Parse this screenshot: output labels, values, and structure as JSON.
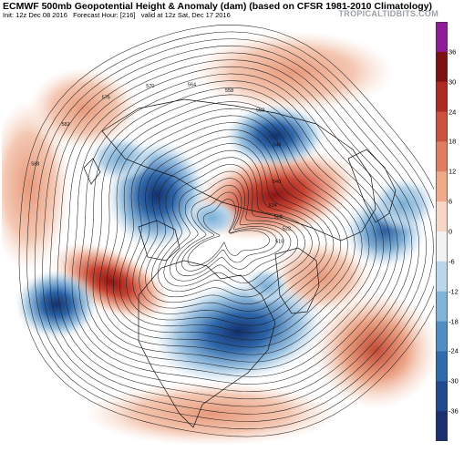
{
  "header": {
    "title": "ECMWF 500mb Geopotential Height & Anomaly (dam) (based on CFSR 1981-2010 Climatology)",
    "init": "Init: 12z Dec 08 2016",
    "forecast_hour": "Forecast Hour: [216]",
    "valid": "valid at 12z Sat, Dec 17 2016",
    "watermark": "TROPICALTIDBITS.COM"
  },
  "colorbar": {
    "ticks": [
      "36",
      "30",
      "24",
      "18",
      "12",
      "6",
      "0",
      "-6",
      "-12",
      "-18",
      "-24",
      "-30",
      "-36"
    ],
    "colors": [
      "#1c2f6f",
      "#204b8f",
      "#2f6cad",
      "#4f8fc4",
      "#82b3d9",
      "#b9d6ea",
      "#f2f2f2",
      "#f7d6c6",
      "#efaa8a",
      "#e07e60",
      "#cc523e",
      "#ad2b23",
      "#7e1212",
      "#8f1d9a"
    ]
  },
  "map": {
    "contour_labels": [
      "588",
      "582",
      "576",
      "570",
      "564",
      "558",
      "552",
      "546",
      "540",
      "534",
      "528",
      "522",
      "516",
      "510"
    ],
    "icons": [
      "polar-stereographic-map",
      "coastlines",
      "height-contours",
      "anomaly-shading"
    ]
  }
}
